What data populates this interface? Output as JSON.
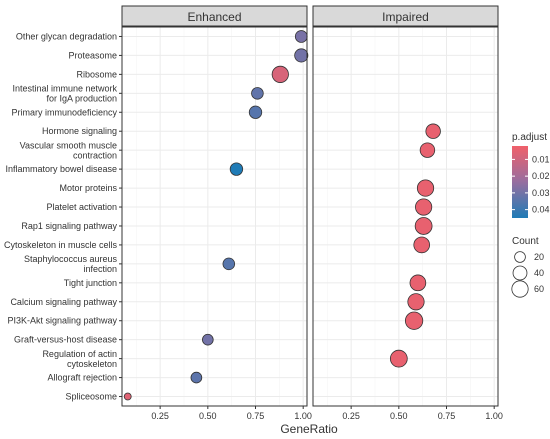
{
  "chart_data": {
    "type": "scatter",
    "panels": [
      "Enhanced",
      "Impaired"
    ],
    "xlabel": "GeneRatio",
    "xlim": [
      0.05,
      1.02
    ],
    "xticks": [
      0.25,
      0.5,
      0.75,
      1.0
    ],
    "xtick_labels": [
      "0.25",
      "0.50",
      "0.75",
      "1.00"
    ],
    "categories": [
      "Other glycan degradation",
      "Proteasome",
      "Ribosome",
      "Intestinal immune network\nfor IgA production",
      "Primary immunodeficiency",
      "Hormone signaling",
      "Vascular smooth muscle\ncontraction",
      "Inflammatory bowel disease",
      "Motor proteins",
      "Platelet activation",
      "Rap1 signaling pathway",
      "Cytoskeleton in muscle cells",
      "Staphylococcus aureus\ninfection",
      "Tight junction",
      "Calcium signaling pathway",
      "PI3K-Akt signaling pathway",
      "Graft-versus-host disease",
      "Regulation of actin\ncytoskeleton",
      "Allograft rejection",
      "Spliceosome"
    ],
    "points": [
      {
        "category": "Other glycan degradation",
        "panel": "Enhanced",
        "x": 0.99,
        "count": 26,
        "p_adjust": 0.029
      },
      {
        "category": "Proteasome",
        "panel": "Enhanced",
        "x": 0.99,
        "count": 35,
        "p_adjust": 0.03
      },
      {
        "category": "Ribosome",
        "panel": "Enhanced",
        "x": 0.88,
        "count": 60,
        "p_adjust": 0.008
      },
      {
        "category": "Intestinal immune network\nfor IgA production",
        "panel": "Enhanced",
        "x": 0.76,
        "count": 25,
        "p_adjust": 0.033
      },
      {
        "category": "Primary immunodeficiency",
        "panel": "Enhanced",
        "x": 0.75,
        "count": 30,
        "p_adjust": 0.035
      },
      {
        "category": "Inflammatory bowel disease",
        "panel": "Enhanced",
        "x": 0.65,
        "count": 30,
        "p_adjust": 0.045
      },
      {
        "category": "Staphylococcus aureus\ninfection",
        "panel": "Enhanced",
        "x": 0.61,
        "count": 25,
        "p_adjust": 0.035
      },
      {
        "category": "Graft-versus-host disease",
        "panel": "Enhanced",
        "x": 0.5,
        "count": 20,
        "p_adjust": 0.03
      },
      {
        "category": "Allograft rejection",
        "panel": "Enhanced",
        "x": 0.44,
        "count": 20,
        "p_adjust": 0.034
      },
      {
        "category": "Spliceosome",
        "panel": "Enhanced",
        "x": 0.08,
        "count": 5,
        "p_adjust": 0.006
      },
      {
        "category": "Hormone signaling",
        "panel": "Impaired",
        "x": 0.68,
        "count": 45,
        "p_adjust": 0.004
      },
      {
        "category": "Vascular smooth muscle\ncontraction",
        "panel": "Impaired",
        "x": 0.65,
        "count": 45,
        "p_adjust": 0.004
      },
      {
        "category": "Motor proteins",
        "panel": "Impaired",
        "x": 0.64,
        "count": 60,
        "p_adjust": 0.004
      },
      {
        "category": "Platelet activation",
        "panel": "Impaired",
        "x": 0.63,
        "count": 60,
        "p_adjust": 0.004
      },
      {
        "category": "Rap1 signaling pathway",
        "panel": "Impaired",
        "x": 0.63,
        "count": 65,
        "p_adjust": 0.004
      },
      {
        "category": "Cytoskeleton in muscle cells",
        "panel": "Impaired",
        "x": 0.62,
        "count": 55,
        "p_adjust": 0.004
      },
      {
        "category": "Tight junction",
        "panel": "Impaired",
        "x": 0.6,
        "count": 55,
        "p_adjust": 0.004
      },
      {
        "category": "Calcium signaling pathway",
        "panel": "Impaired",
        "x": 0.59,
        "count": 60,
        "p_adjust": 0.004
      },
      {
        "category": "PI3K-Akt signaling pathway",
        "panel": "Impaired",
        "x": 0.58,
        "count": 70,
        "p_adjust": 0.004
      },
      {
        "category": "Regulation of actin\ncytoskeleton",
        "panel": "Impaired",
        "x": 0.5,
        "count": 65,
        "p_adjust": 0.004
      }
    ],
    "color_legend": {
      "title": "p.adjust",
      "ticks": [
        0.01,
        0.02,
        0.03,
        0.04
      ],
      "tick_labels": [
        "0.01",
        "0.02",
        "0.03",
        "0.04"
      ],
      "range": [
        0.002,
        0.045
      ],
      "low_color": "#f0606a",
      "high_color": "#1f7bb6"
    },
    "size_legend": {
      "title": "Count",
      "values": [
        20,
        40,
        60
      ],
      "labels": [
        "20",
        "40",
        "60"
      ]
    },
    "grid": true,
    "point_outline": "#333333"
  }
}
